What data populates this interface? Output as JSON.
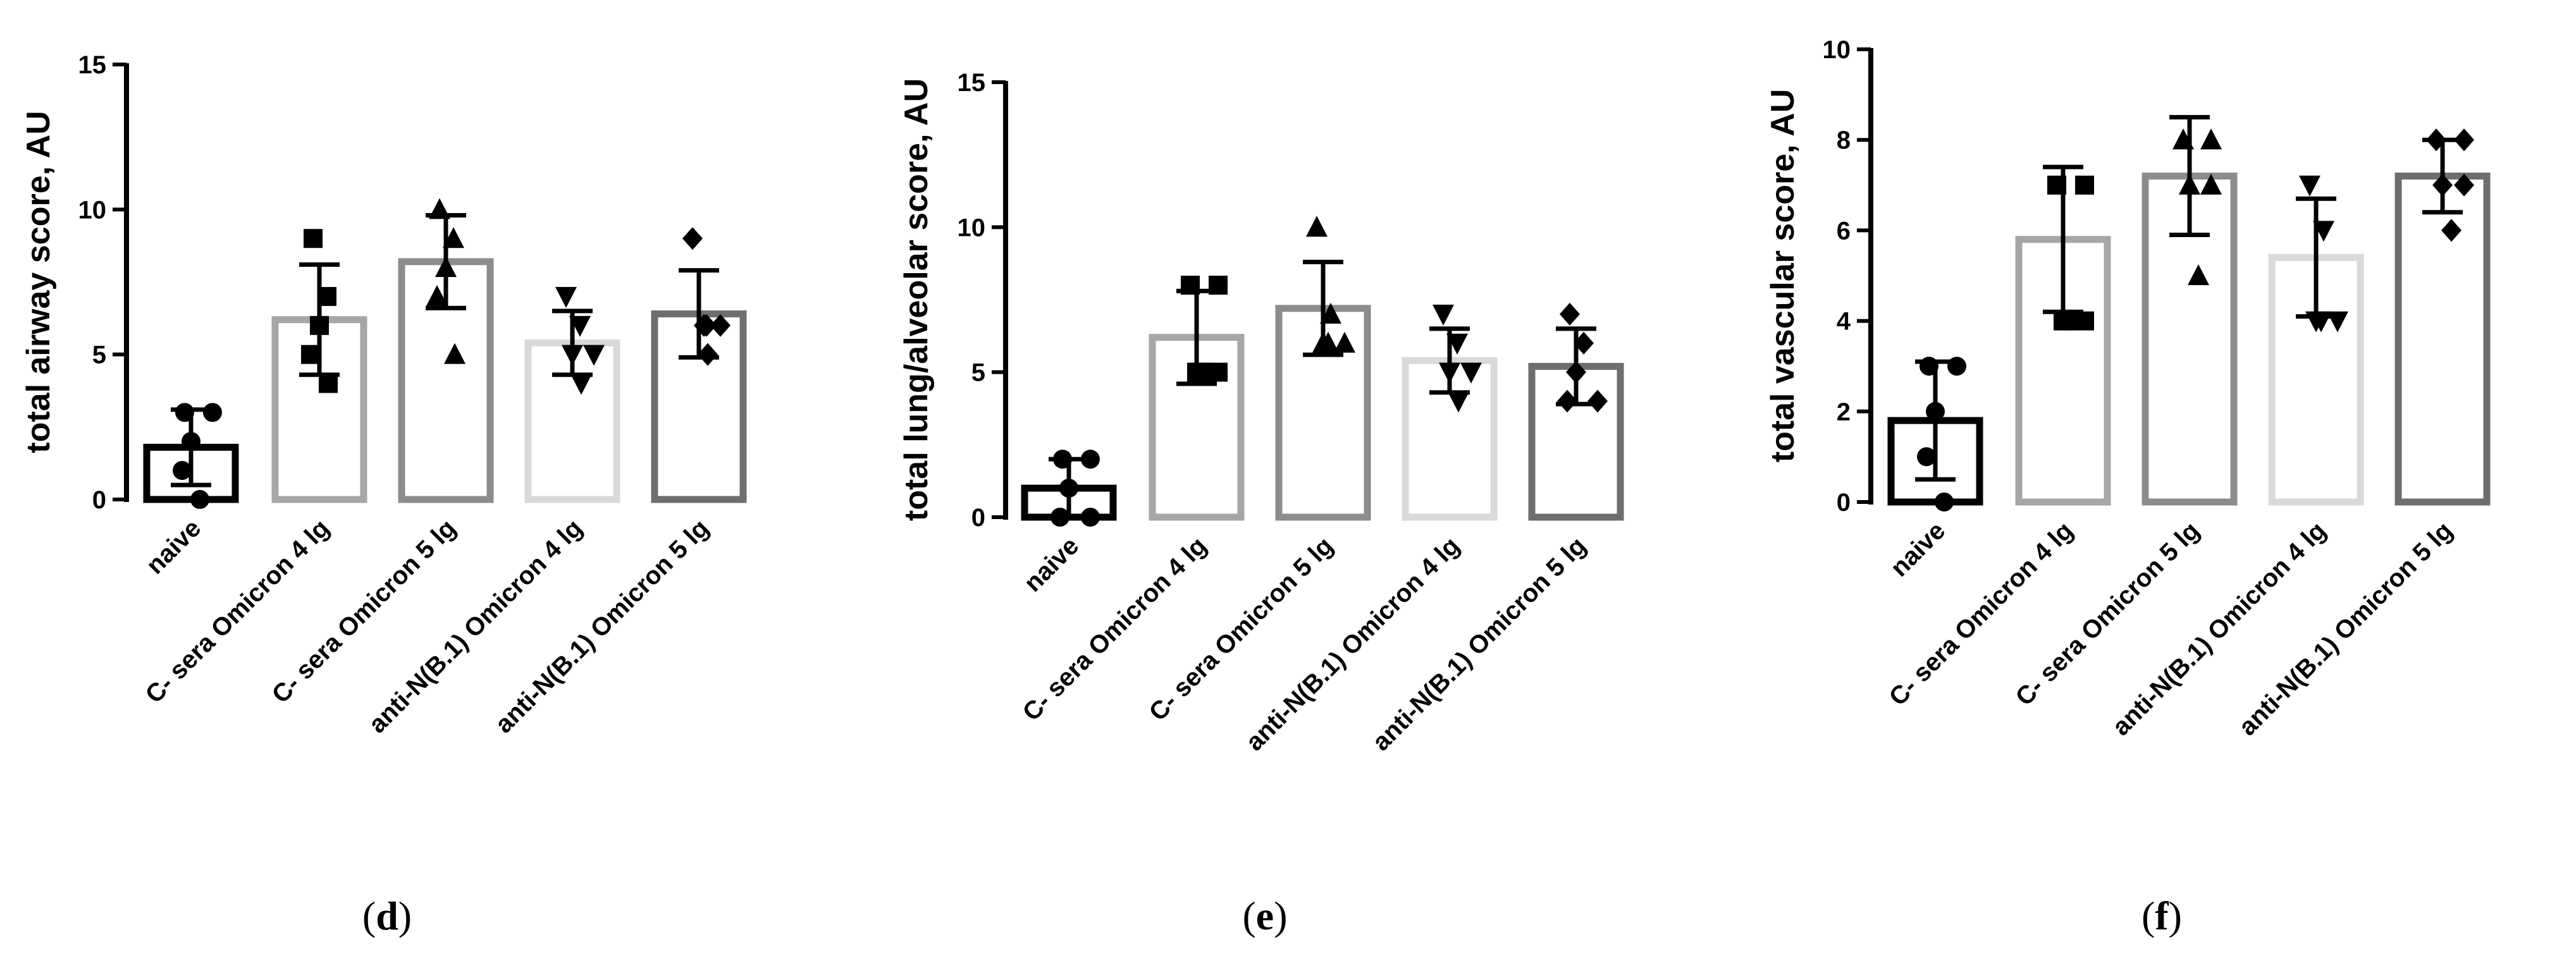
{
  "chart_data": [
    {
      "type": "bar",
      "panel": "d",
      "ylabel": "total airway score, AU",
      "ylim": [
        0,
        15
      ],
      "yticks": [
        0,
        5,
        10,
        15
      ],
      "categories": [
        "naive",
        "C- sera Omicron 4 lg",
        "C- sera Omicron 5 lg",
        "anti-N(B.1) Omicron 4 lg",
        "anti-N(B.1) Omicron 5 lg"
      ],
      "values": [
        1.8,
        6.2,
        8.2,
        5.4,
        6.4
      ],
      "error": [
        1.3,
        1.9,
        1.6,
        1.1,
        1.5
      ],
      "colors": [
        "#000000",
        "#a6a6a6",
        "#8c8c8c",
        "#d9d9d9",
        "#6e6e6e"
      ],
      "markers": [
        "circle",
        "square",
        "triangle-up",
        "triangle-down",
        "diamond"
      ],
      "points": [
        [
          3,
          3,
          2,
          1,
          0
        ],
        [
          9,
          7,
          6,
          5,
          4
        ],
        [
          10,
          9,
          8,
          7,
          5
        ],
        [
          7,
          6,
          5,
          5,
          4
        ],
        [
          9,
          6,
          6,
          6,
          5
        ]
      ]
    },
    {
      "type": "bar",
      "panel": "e",
      "ylabel": "total lung/alveolar score, AU",
      "ylim": [
        0,
        15
      ],
      "yticks": [
        0,
        5,
        10,
        15
      ],
      "categories": [
        "naive",
        "C- sera Omicron 4 lg",
        "C- sera Omicron 5 lg",
        "anti-N(B.1) Omicron 4 lg",
        "anti-N(B.1) Omicron 5 lg"
      ],
      "values": [
        1.0,
        6.2,
        7.2,
        5.4,
        5.2
      ],
      "error": [
        1.0,
        1.6,
        1.6,
        1.1,
        1.3
      ],
      "colors": [
        "#000000",
        "#a6a6a6",
        "#8c8c8c",
        "#d9d9d9",
        "#6e6e6e"
      ],
      "markers": [
        "circle",
        "square",
        "triangle-up",
        "triangle-down",
        "diamond"
      ],
      "points": [
        [
          2,
          2,
          1,
          0,
          0
        ],
        [
          8,
          8,
          5,
          5,
          5
        ],
        [
          10,
          7,
          6,
          6,
          6
        ],
        [
          7,
          6,
          5,
          5,
          4
        ],
        [
          7,
          6,
          5,
          4,
          4
        ]
      ]
    },
    {
      "type": "bar",
      "panel": "f",
      "ylabel": "total vascular score, AU",
      "ylim": [
        0,
        10
      ],
      "yticks": [
        0,
        2,
        4,
        6,
        8,
        10
      ],
      "categories": [
        "naive",
        "C- sera Omicron 4 lg",
        "C- sera Omicron 5 lg",
        "anti-N(B.1) Omicron 4 lg",
        "anti-N(B.1) Omicron 5 lg"
      ],
      "values": [
        1.8,
        5.8,
        7.2,
        5.4,
        7.2
      ],
      "error": [
        1.3,
        1.6,
        1.3,
        1.3,
        0.8
      ],
      "colors": [
        "#000000",
        "#a6a6a6",
        "#8c8c8c",
        "#d9d9d9",
        "#6e6e6e"
      ],
      "markers": [
        "circle",
        "square",
        "triangle-up",
        "triangle-down",
        "diamond"
      ],
      "points": [
        [
          3,
          3,
          2,
          1,
          0
        ],
        [
          7,
          7,
          4,
          4,
          4
        ],
        [
          8,
          8,
          7,
          7,
          5
        ],
        [
          7,
          6,
          4,
          4,
          4
        ],
        [
          8,
          8,
          7,
          7,
          6
        ]
      ]
    }
  ]
}
